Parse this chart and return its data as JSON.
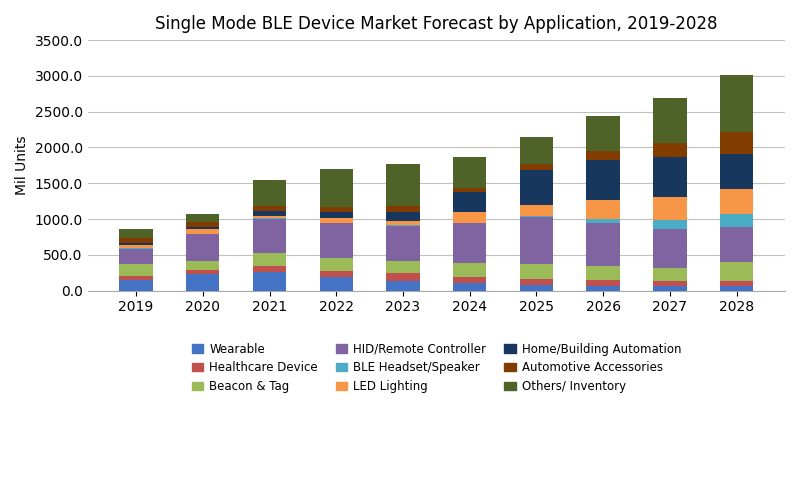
{
  "title": "Single Mode BLE Device Market Forecast by Application, 2019-2028",
  "ylabel": "Mil Units",
  "years": [
    2019,
    2020,
    2021,
    2022,
    2023,
    2024,
    2025,
    2026,
    2027,
    2028
  ],
  "categories": [
    "Wearable",
    "Healthcare Device",
    "Beacon & Tag",
    "HID/Remote Controller",
    "BLE Headset/Speaker",
    "LED Lighting",
    "Home/Building Automation",
    "Automotive Accessories",
    "Others/ Inventory"
  ],
  "colors": [
    "#4472C4",
    "#C0504D",
    "#9BBB59",
    "#8064A2",
    "#4BACC6",
    "#F79646",
    "#17375E",
    "#833C00",
    "#4F6228"
  ],
  "data": {
    "Wearable": [
      150,
      230,
      260,
      185,
      135,
      100,
      80,
      70,
      65,
      60
    ],
    "Healthcare Device": [
      55,
      55,
      90,
      95,
      105,
      95,
      85,
      80,
      75,
      70
    ],
    "Beacon & Tag": [
      165,
      130,
      175,
      175,
      175,
      185,
      205,
      190,
      175,
      265
    ],
    "HID/Remote Controller": [
      215,
      375,
      480,
      490,
      490,
      565,
      655,
      600,
      545,
      490
    ],
    "BLE Headset/Speaker": [
      5,
      5,
      5,
      5,
      5,
      5,
      15,
      60,
      120,
      185
    ],
    "LED Lighting": [
      50,
      65,
      30,
      65,
      65,
      155,
      160,
      265,
      330,
      355
    ],
    "Home/Building Automation": [
      25,
      25,
      75,
      90,
      130,
      270,
      480,
      560,
      555,
      480
    ],
    "Automotive Accessories": [
      65,
      70,
      65,
      70,
      75,
      55,
      85,
      120,
      200,
      310
    ],
    "Others/ Inventory": [
      130,
      115,
      370,
      525,
      595,
      430,
      385,
      495,
      630,
      795
    ]
  },
  "ylim": [
    0,
    3500
  ],
  "yticks": [
    0.0,
    500.0,
    1000.0,
    1500.0,
    2000.0,
    2500.0,
    3000.0,
    3500.0
  ],
  "background_color": "#ffffff",
  "grid_color": "#c0c0c0",
  "title_fontsize": 12,
  "legend_fontsize": 8.5,
  "tick_fontsize": 10,
  "bar_width": 0.5
}
